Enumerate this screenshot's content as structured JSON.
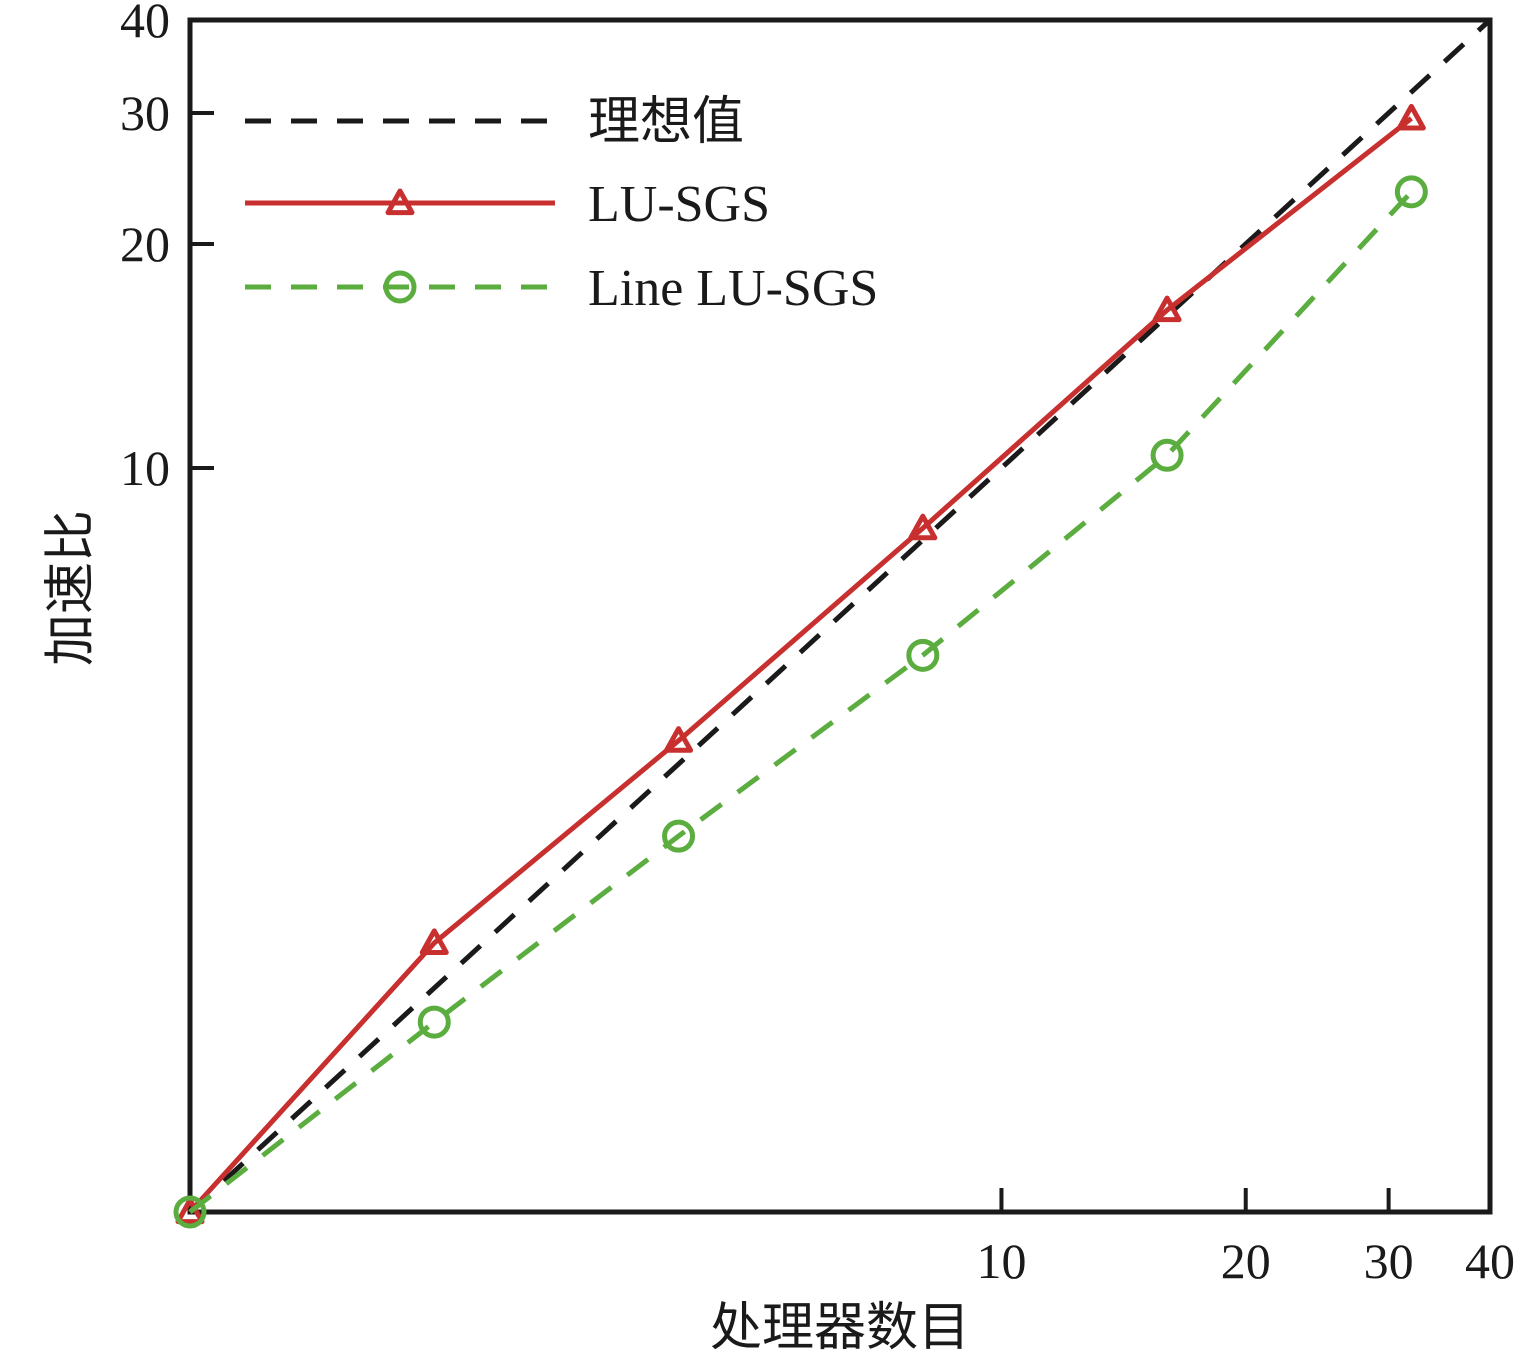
{
  "chart_data": {
    "type": "line",
    "title": "",
    "xlabel": "处理器数目",
    "ylabel": "加速比",
    "x_scale": "log",
    "y_scale": "log",
    "xlim": [
      1,
      40
    ],
    "ylim": [
      1,
      40
    ],
    "x_ticks": [
      10,
      20,
      30,
      40
    ],
    "y_ticks": [
      10,
      20,
      30,
      40
    ],
    "grid": false,
    "legend_position": "top-left",
    "series": [
      {
        "name": "理想值",
        "color": "#1a1a1a",
        "dash": "dashed",
        "marker": "none",
        "x": [
          1,
          40
        ],
        "y": [
          1,
          40
        ]
      },
      {
        "name": "LU-SGS",
        "color": "#c8302f",
        "dash": "solid",
        "marker": "triangle",
        "x": [
          1,
          2,
          4,
          8,
          16,
          32
        ],
        "y": [
          1,
          2.3,
          4.3,
          8.3,
          16.3,
          29.5
        ]
      },
      {
        "name": "Line LU-SGS",
        "color": "#5aad3e",
        "dash": "dashed",
        "marker": "circle",
        "x": [
          1,
          2,
          4,
          8,
          16,
          32
        ],
        "y": [
          1,
          1.8,
          3.2,
          5.6,
          10.4,
          23.5
        ]
      }
    ]
  }
}
